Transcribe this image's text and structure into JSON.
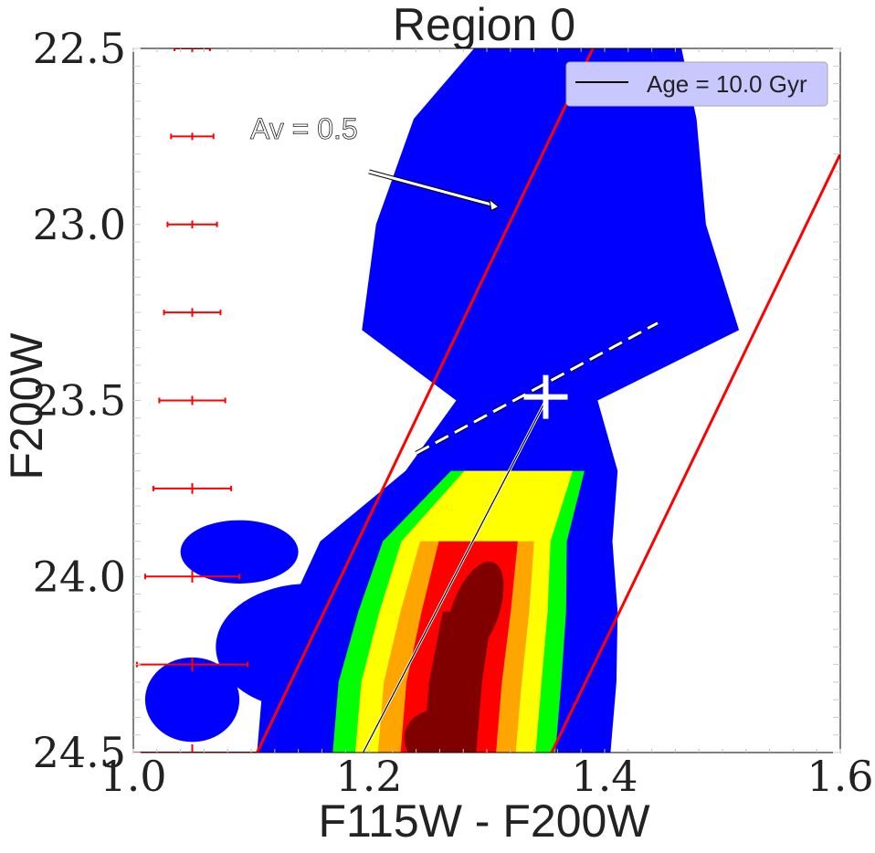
{
  "chart_data": {
    "type": "heatmap",
    "title": "Region 0",
    "xlabel": "F115W - F200W",
    "ylabel": "F200W",
    "xlim": [
      1.0,
      1.6
    ],
    "ylim": [
      24.5,
      22.5
    ],
    "y_inverted": true,
    "xticks": [
      1.0,
      1.2,
      1.4,
      1.6
    ],
    "xtick_labels": [
      "1.0",
      "1.2",
      "1.4",
      "1.6"
    ],
    "yticks": [
      22.5,
      23.0,
      23.5,
      24.0,
      24.5
    ],
    "ytick_labels": [
      "22.5",
      "23.0",
      "23.5",
      "24.0",
      "24.5"
    ],
    "legend": {
      "label": "Age = 10.0 Gyr",
      "placement": "top-right"
    },
    "density_levels": [
      {
        "level": 1,
        "color": "#0000ff"
      },
      {
        "level": 2,
        "color": "#00ff00"
      },
      {
        "level": 3,
        "color": "#ffff00"
      },
      {
        "level": 4,
        "color": "#ffa500"
      },
      {
        "level": 5,
        "color": "#ff0000"
      },
      {
        "level": 6,
        "color": "#800000"
      }
    ],
    "density_ridge": [
      {
        "y": 24.5,
        "x": 1.27,
        "w": 0.075
      },
      {
        "y": 24.3,
        "x": 1.275,
        "w": 0.075
      },
      {
        "y": 24.1,
        "x": 1.285,
        "w": 0.07
      },
      {
        "y": 23.9,
        "x": 1.295,
        "w": 0.062
      },
      {
        "y": 23.7,
        "x": 1.33,
        "w": 0.045
      },
      {
        "y": 23.5,
        "x": 1.34,
        "w": 0.03
      }
    ],
    "diffuse_blobs": [
      {
        "x": 1.09,
        "y": 23.93,
        "rx": 0.05,
        "ry": 0.09
      },
      {
        "x": 1.05,
        "y": 24.35,
        "rx": 0.04,
        "ry": 0.12
      },
      {
        "x": 1.15,
        "y": 24.2,
        "rx": 0.08,
        "ry": 0.18
      }
    ],
    "selection_lines": [
      {
        "x": [
          1.105,
          1.39
        ],
        "y": [
          24.5,
          22.5
        ],
        "color": "#ff0000"
      },
      {
        "x": [
          1.355,
          1.6
        ],
        "y": [
          24.5,
          22.8
        ],
        "color": "#ff0000"
      }
    ],
    "isochrone": {
      "x": [
        1.195,
        1.35
      ],
      "y": [
        24.5,
        23.5
      ],
      "color": "#000000"
    },
    "trgb_line": {
      "x": [
        1.24,
        1.445
      ],
      "y": [
        23.65,
        23.28
      ]
    },
    "trgb_marker": {
      "x": 1.35,
      "y": 23.49
    },
    "reddening_vector": {
      "label": "Av = 0.5",
      "x": [
        1.2,
        1.31
      ],
      "y": [
        22.85,
        22.95
      ]
    },
    "error_bars": [
      {
        "x": 1.05,
        "y": 22.5,
        "xerr": 0.015,
        "yerr": 0.005
      },
      {
        "x": 1.05,
        "y": 22.75,
        "xerr": 0.018,
        "yerr": 0.005
      },
      {
        "x": 1.05,
        "y": 23.0,
        "xerr": 0.021,
        "yerr": 0.006
      },
      {
        "x": 1.05,
        "y": 23.25,
        "xerr": 0.024,
        "yerr": 0.007
      },
      {
        "x": 1.05,
        "y": 23.5,
        "xerr": 0.028,
        "yerr": 0.008
      },
      {
        "x": 1.05,
        "y": 23.75,
        "xerr": 0.033,
        "yerr": 0.01
      },
      {
        "x": 1.05,
        "y": 24.0,
        "xerr": 0.04,
        "yerr": 0.012
      },
      {
        "x": 1.05,
        "y": 24.25,
        "xerr": 0.047,
        "yerr": 0.015
      },
      {
        "x": 1.05,
        "y": 24.5,
        "xerr": 0.056,
        "yerr": 0.018
      }
    ]
  }
}
